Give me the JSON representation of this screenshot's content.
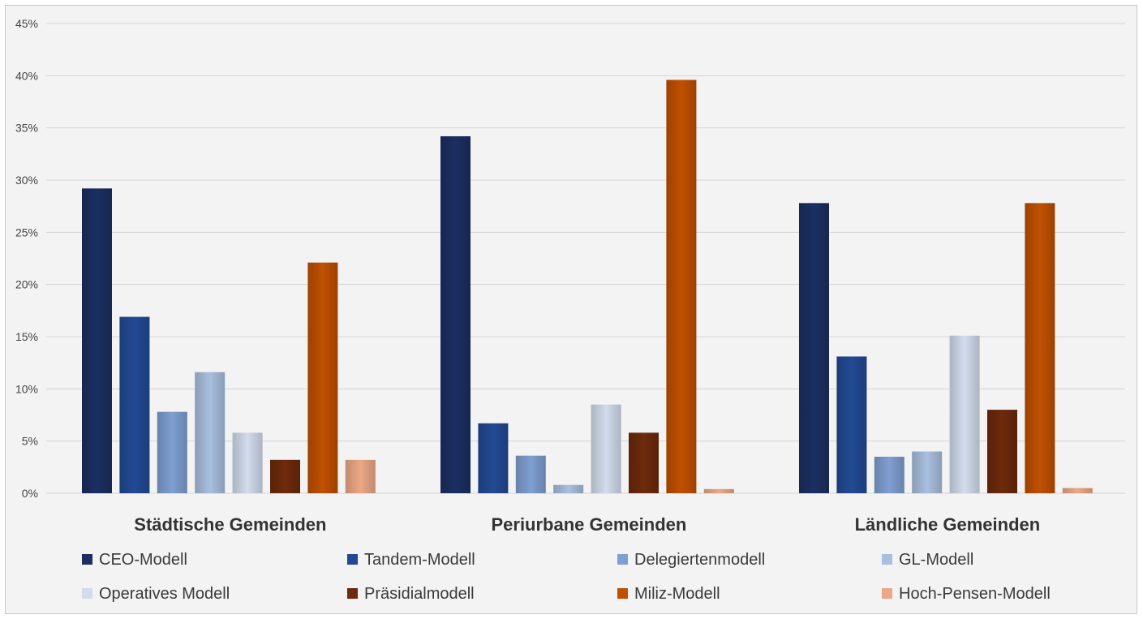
{
  "chart_data": {
    "type": "bar",
    "title": "",
    "xlabel": "",
    "ylabel": "",
    "ylim": [
      0,
      45
    ],
    "y_ticks": [
      "0%",
      "5%",
      "10%",
      "15%",
      "20%",
      "25%",
      "30%",
      "35%",
      "40%",
      "45%"
    ],
    "grid": true,
    "legend_position": "bottom",
    "categories": [
      "Städtische Gemeinden",
      "Periurbane Gemeinden",
      "Ländliche Gemeinden"
    ],
    "series": [
      {
        "name": "CEO-Modell",
        "color": "#1b2f62",
        "values": [
          29.2,
          34.2,
          27.8
        ]
      },
      {
        "name": "Tandem-Modell",
        "color": "#224a94",
        "values": [
          16.9,
          6.7,
          13.1
        ]
      },
      {
        "name": "Delegiertenmodell",
        "color": "#7f9fd1",
        "values": [
          7.8,
          3.6,
          3.5
        ]
      },
      {
        "name": "GL-Modell",
        "color": "#a8bfde",
        "values": [
          11.6,
          0.8,
          4.0
        ]
      },
      {
        "name": "Operatives Modell",
        "color": "#d2dcec",
        "values": [
          5.8,
          8.5,
          15.1
        ]
      },
      {
        "name": "Präsidialmodell",
        "color": "#6e2a0c",
        "values": [
          3.2,
          5.8,
          8.0
        ]
      },
      {
        "name": "Miliz-Modell",
        "color": "#c05000",
        "values": [
          22.1,
          39.6,
          27.8
        ]
      },
      {
        "name": "Hoch-Pensen-Modell",
        "color": "#eca886",
        "values": [
          3.2,
          0.4,
          0.5
        ]
      }
    ]
  }
}
